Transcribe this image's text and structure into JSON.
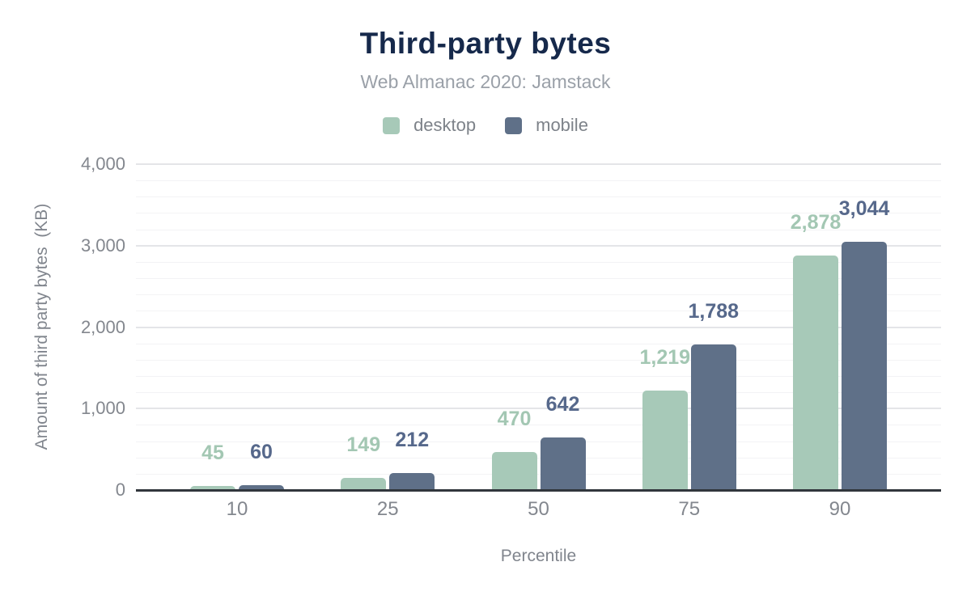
{
  "chart_data": {
    "type": "bar",
    "title": "Third-party bytes",
    "subtitle": "Web Almanac 2020: Jamstack",
    "xlabel": "Percentile",
    "ylabel": "Amount of third party bytes  (KB)",
    "categories": [
      "10",
      "25",
      "50",
      "75",
      "90"
    ],
    "series": [
      {
        "name": "desktop",
        "color": "#a7c9b8",
        "label_color": "#a3c7b3",
        "values": [
          45,
          149,
          470,
          1219,
          2878
        ],
        "labels": [
          "45",
          "149",
          "470",
          "1,219",
          "2,878"
        ]
      },
      {
        "name": "mobile",
        "color": "#5f7088",
        "label_color": "#56688b",
        "values": [
          60,
          212,
          642,
          1788,
          3044
        ],
        "labels": [
          "60",
          "212",
          "642",
          "1,788",
          "3,044"
        ]
      }
    ],
    "ylim": [
      0,
      4000
    ],
    "yticks": [
      {
        "value": 0,
        "label": "0"
      },
      {
        "value": 1000,
        "label": "1,000"
      },
      {
        "value": 2000,
        "label": "2,000"
      },
      {
        "value": 3000,
        "label": "3,000"
      },
      {
        "value": 4000,
        "label": "4,000"
      }
    ],
    "minor_gridline_step": 200,
    "grid": true,
    "legend_position": "top"
  },
  "colors": {
    "title": "#16294b",
    "subtitle": "#9aa0a8",
    "axis_text": "#83878e",
    "legend_text": "#7d8289",
    "axis_line": "#31363c",
    "grid_major": "#e4e5e8",
    "grid_minor": "#f3f3f5",
    "background": "#ffffff"
  }
}
